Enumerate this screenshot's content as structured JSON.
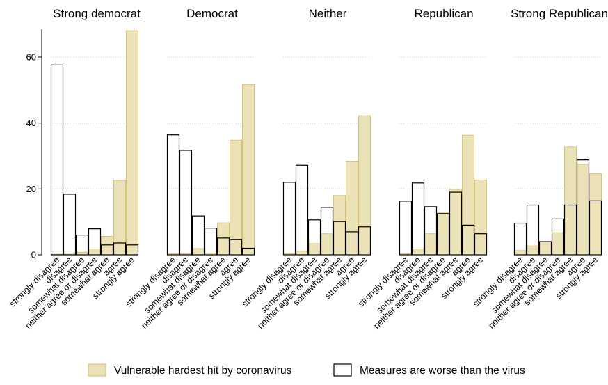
{
  "chart_data": {
    "type": "bar",
    "panels": [
      "Strong democrat",
      "Democrat",
      "Neither",
      "Republican",
      "Strong Republican"
    ],
    "categories": [
      "strongly disagree",
      "disagree",
      "somewhat disagree",
      "neither agree or disagree",
      "somewhat agree",
      "agree",
      "strongly agree"
    ],
    "series": [
      {
        "name": "Vulnerable hardest hit by coronavirus",
        "fill": "#ece2b7",
        "stroke": "#d8c276",
        "values": [
          [
            0.2,
            0.2,
            0.8,
            1.8,
            5.6,
            22.6,
            68.0
          ],
          [
            0.3,
            0.3,
            1.9,
            0.5,
            9.7,
            34.8,
            51.7
          ],
          [
            0.3,
            1.2,
            3.4,
            6.4,
            18.0,
            28.4,
            42.2
          ],
          [
            0.3,
            1.8,
            6.4,
            12.7,
            19.9,
            36.3,
            22.7
          ],
          [
            1.3,
            2.7,
            4.0,
            6.7,
            32.8,
            27.5,
            24.6
          ]
        ]
      },
      {
        "name": "Measures are worse than the virus",
        "fill": "none",
        "stroke": "#000000",
        "values": [
          [
            57.6,
            18.4,
            6.0,
            7.9,
            3.0,
            3.6,
            3.0
          ],
          [
            36.4,
            31.7,
            11.8,
            8.1,
            5.1,
            4.6,
            2.0
          ],
          [
            22.0,
            27.2,
            10.6,
            14.4,
            10.1,
            7.0,
            8.5
          ],
          [
            16.3,
            21.8,
            14.6,
            12.5,
            19.0,
            9.0,
            6.4
          ],
          [
            9.6,
            15.1,
            4.0,
            10.9,
            15.1,
            28.8,
            16.4
          ]
        ]
      }
    ],
    "y_ticks": [
      "0",
      "20",
      "40",
      "60"
    ],
    "ylim": [
      0,
      68
    ],
    "grid": "dotted horizontal",
    "legend_position": "bottom"
  }
}
